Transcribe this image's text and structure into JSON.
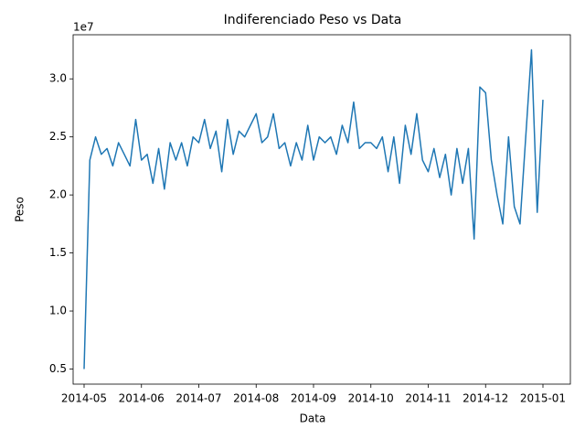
{
  "chart_data": {
    "type": "line",
    "title": "Indiferenciado Peso vs Data",
    "x_label": "Data",
    "y_label": "Peso",
    "y_offset_label": "1e7",
    "categories": [
      "2014-05",
      null,
      null,
      null,
      null,
      null,
      null,
      null,
      null,
      null,
      "2014-06",
      null,
      null,
      null,
      null,
      null,
      null,
      null,
      null,
      null,
      "2014-07",
      null,
      null,
      null,
      null,
      null,
      null,
      null,
      null,
      null,
      "2014-08",
      null,
      null,
      null,
      null,
      null,
      null,
      null,
      null,
      null,
      "2014-09",
      null,
      null,
      null,
      null,
      null,
      null,
      null,
      null,
      null,
      "2014-10",
      null,
      null,
      null,
      null,
      null,
      null,
      null,
      null,
      null,
      "2014-11",
      null,
      null,
      null,
      null,
      null,
      null,
      null,
      null,
      null,
      "2014-12",
      null,
      null,
      null,
      null,
      null,
      null,
      null,
      null,
      null,
      "2015-01"
    ],
    "values": [
      0.5,
      2.3,
      2.5,
      2.35,
      2.4,
      2.25,
      2.45,
      2.35,
      2.25,
      2.65,
      2.3,
      2.35,
      2.1,
      2.4,
      2.05,
      2.45,
      2.3,
      2.45,
      2.25,
      2.5,
      2.45,
      2.65,
      2.4,
      2.55,
      2.2,
      2.65,
      2.35,
      2.55,
      2.5,
      2.6,
      2.7,
      2.45,
      2.5,
      2.7,
      2.4,
      2.45,
      2.25,
      2.45,
      2.3,
      2.6,
      2.3,
      2.5,
      2.45,
      2.5,
      2.35,
      2.6,
      2.45,
      2.8,
      2.4,
      2.45,
      2.45,
      2.4,
      2.5,
      2.2,
      2.5,
      2.1,
      2.6,
      2.35,
      2.7,
      2.3,
      2.2,
      2.4,
      2.15,
      2.35,
      2.0,
      2.4,
      2.1,
      2.4,
      1.62,
      2.93,
      2.88,
      2.3,
      2.0,
      1.75,
      2.5,
      1.9,
      1.75,
      2.5,
      3.25,
      1.85,
      2.82
    ],
    "color": "#1f77b4",
    "ylim": [
      0.37,
      3.38
    ],
    "yticks": [
      0.5,
      {
        "value": 1,
        "label": "1.0"
      },
      1.5,
      {
        "value": 2,
        "label": "2.0"
      },
      2.5,
      {
        "value": 3,
        "label": "3.0"
      }
    ],
    "grid": false
  }
}
